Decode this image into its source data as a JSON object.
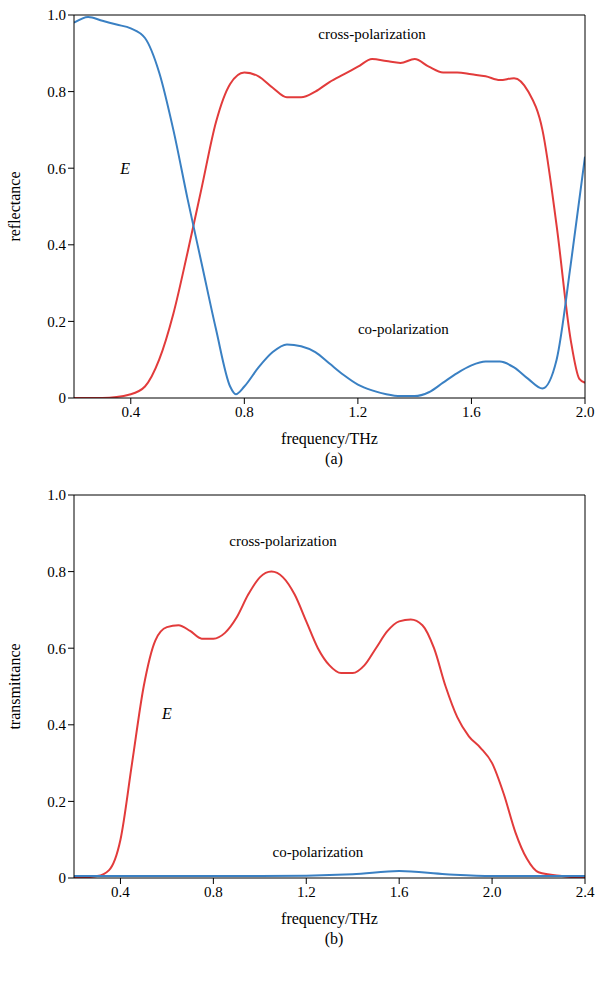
{
  "chart_data": [
    {
      "type": "line",
      "title": "(a)",
      "x_label": "frequency/THz",
      "y_label": "reflectance",
      "xlim": [
        0.2,
        2.0
      ],
      "xticks": [
        0.4,
        0.8,
        1.2,
        1.6,
        {
          "value": 2,
          "label": "2.0"
        }
      ],
      "ylim": [
        0,
        1
      ],
      "yticks": [
        0,
        0.2,
        0.4,
        0.6,
        0.8,
        {
          "value": 1,
          "label": "1.0"
        }
      ],
      "grid": false,
      "series": [
        {
          "color": "#e23b3b",
          "x": [
            0.2,
            0.3,
            0.4,
            0.45,
            0.5,
            0.55,
            0.6,
            0.65,
            0.7,
            0.75,
            0.8,
            0.85,
            0.9,
            0.95,
            1.0,
            1.05,
            1.1,
            1.15,
            1.2,
            1.25,
            1.3,
            1.35,
            1.4,
            1.45,
            1.5,
            1.55,
            1.6,
            1.65,
            1.7,
            1.75,
            1.8,
            1.85,
            1.9,
            1.95,
            1.98,
            2.0
          ],
          "values": [
            0,
            0,
            0.01,
            0.03,
            0.1,
            0.22,
            0.38,
            0.55,
            0.72,
            0.82,
            0.85,
            0.84,
            0.81,
            0.785,
            0.785,
            0.8,
            0.825,
            0.845,
            0.865,
            0.885,
            0.88,
            0.875,
            0.885,
            0.865,
            0.85,
            0.85,
            0.845,
            0.84,
            0.83,
            0.835,
            0.8,
            0.7,
            0.45,
            0.15,
            0.05,
            0.04
          ]
        },
        {
          "color": "#3a80c3",
          "x": [
            0.2,
            0.25,
            0.3,
            0.35,
            0.4,
            0.45,
            0.5,
            0.55,
            0.6,
            0.65,
            0.7,
            0.75,
            0.77,
            0.8,
            0.85,
            0.9,
            0.95,
            1.0,
            1.05,
            1.1,
            1.15,
            1.2,
            1.25,
            1.3,
            1.35,
            1.4,
            1.45,
            1.5,
            1.55,
            1.6,
            1.65,
            1.7,
            1.75,
            1.8,
            1.85,
            1.9,
            1.95,
            2.0
          ],
          "values": [
            0.98,
            0.995,
            0.985,
            0.975,
            0.965,
            0.94,
            0.85,
            0.7,
            0.52,
            0.35,
            0.18,
            0.03,
            0.01,
            0.03,
            0.08,
            0.12,
            0.14,
            0.135,
            0.12,
            0.09,
            0.06,
            0.035,
            0.02,
            0.01,
            0.005,
            0.005,
            0.015,
            0.04,
            0.065,
            0.085,
            0.095,
            0.095,
            0.08,
            0.05,
            0.025,
            0.1,
            0.35,
            0.63
          ]
        }
      ],
      "annotations": [
        {
          "text": "cross-polarization",
          "x": 1.25,
          "y": 0.95
        },
        {
          "text": "co-polarization",
          "x": 1.36,
          "y": 0.18
        },
        {
          "text": "E",
          "x": 0.38,
          "y": 0.6
        }
      ]
    },
    {
      "type": "line",
      "title": "(b)",
      "x_label": "frequency/THz",
      "y_label": "transmittance",
      "xlim": [
        0.2,
        2.4
      ],
      "xticks": [
        0.4,
        0.8,
        1.2,
        1.6,
        {
          "value": 2,
          "label": "2.0"
        },
        2.4
      ],
      "ylim": [
        0,
        1
      ],
      "yticks": [
        0,
        0.2,
        0.4,
        0.6,
        0.8,
        {
          "value": 1,
          "label": "1.0"
        }
      ],
      "grid": false,
      "series": [
        {
          "color": "#e23b3b",
          "x": [
            0.2,
            0.3,
            0.35,
            0.4,
            0.45,
            0.5,
            0.55,
            0.6,
            0.65,
            0.7,
            0.75,
            0.8,
            0.85,
            0.9,
            0.95,
            1.0,
            1.05,
            1.1,
            1.15,
            1.2,
            1.25,
            1.3,
            1.35,
            1.4,
            1.45,
            1.5,
            1.55,
            1.6,
            1.65,
            1.7,
            1.75,
            1.8,
            1.85,
            1.9,
            1.95,
            2.0,
            2.05,
            2.1,
            2.15,
            2.2,
            2.3,
            2.4
          ],
          "values": [
            0,
            0.005,
            0.02,
            0.1,
            0.3,
            0.5,
            0.62,
            0.655,
            0.66,
            0.645,
            0.625,
            0.625,
            0.64,
            0.68,
            0.74,
            0.785,
            0.8,
            0.785,
            0.74,
            0.67,
            0.6,
            0.555,
            0.535,
            0.535,
            0.555,
            0.6,
            0.645,
            0.67,
            0.675,
            0.66,
            0.6,
            0.5,
            0.42,
            0.37,
            0.34,
            0.3,
            0.22,
            0.12,
            0.05,
            0.015,
            0.005,
            0
          ]
        },
        {
          "color": "#3a80c3",
          "x": [
            0.2,
            0.6,
            1.0,
            1.4,
            1.6,
            1.8,
            2.0,
            2.4
          ],
          "values": [
            0.005,
            0.005,
            0.005,
            0.01,
            0.018,
            0.01,
            0.005,
            0.005
          ]
        }
      ],
      "annotations": [
        {
          "text": "cross-polarization",
          "x": 1.1,
          "y": 0.88
        },
        {
          "text": "co-polarization",
          "x": 1.25,
          "y": 0.07
        },
        {
          "text": "E",
          "x": 0.6,
          "y": 0.43
        }
      ]
    }
  ]
}
